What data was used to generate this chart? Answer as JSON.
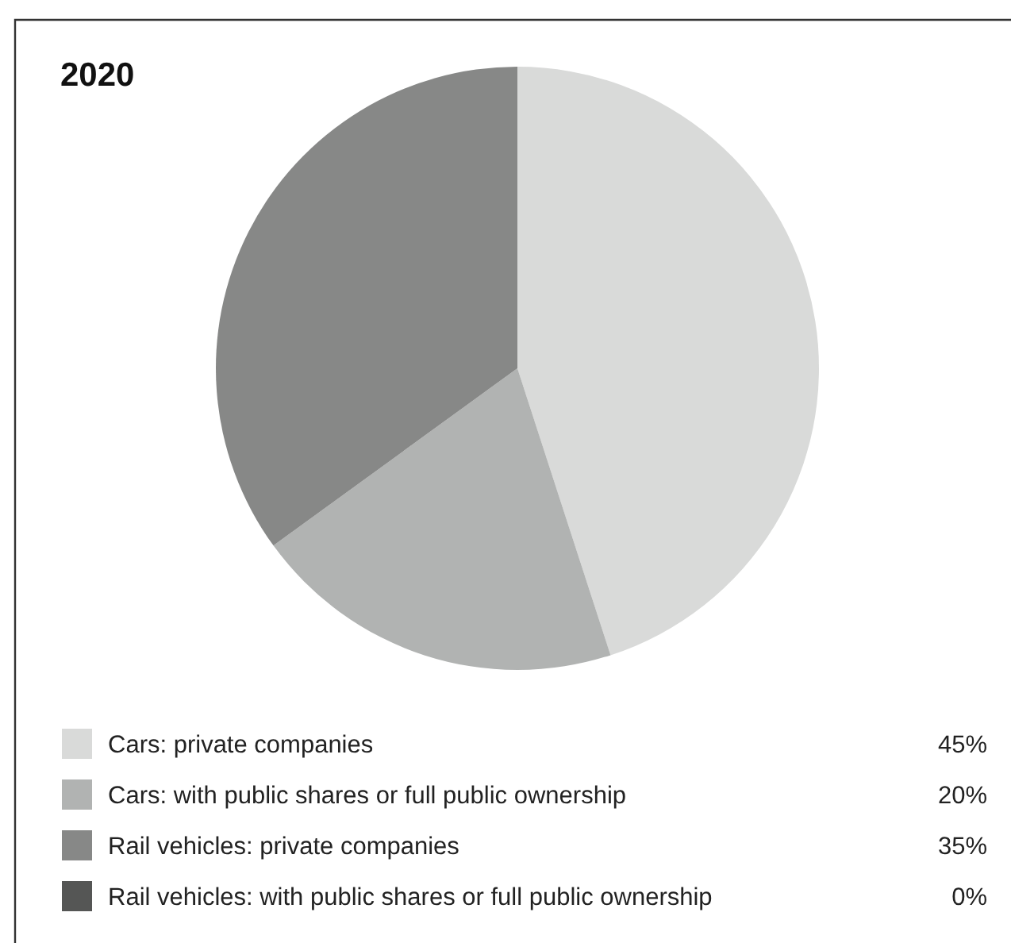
{
  "chart_data": {
    "type": "pie",
    "title": "2020",
    "categories": [
      "Cars: private companies",
      "Cars: with public shares or full public ownership",
      "Rail vehicles: private companies",
      "Rail vehicles: with public shares or full public ownership"
    ],
    "values": [
      45,
      20,
      35,
      0
    ],
    "colors": [
      "#d9dad9",
      "#b1b3b2",
      "#878887",
      "#555655"
    ],
    "value_labels": [
      "45%",
      "20%",
      "35%",
      "0%"
    ],
    "legend": "bottom"
  }
}
